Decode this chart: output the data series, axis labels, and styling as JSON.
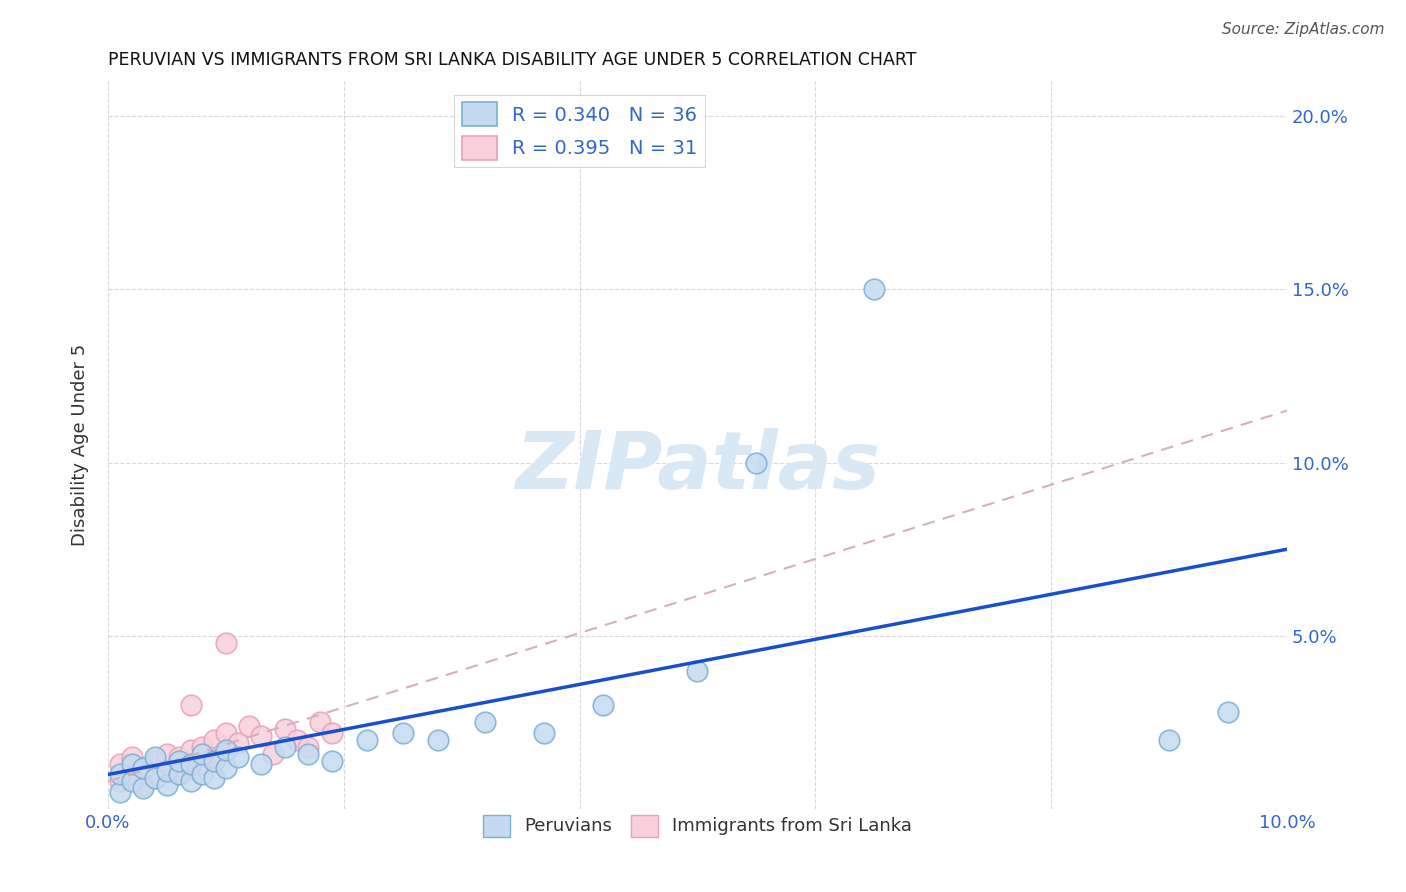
{
  "title": "PERUVIAN VS IMMIGRANTS FROM SRI LANKA DISABILITY AGE UNDER 5 CORRELATION CHART",
  "source": "Source: ZipAtlas.com",
  "ylabel": "Disability Age Under 5",
  "xlim": [
    0.0,
    0.1
  ],
  "ylim": [
    0.0,
    0.21
  ],
  "xticks": [
    0.0,
    0.02,
    0.04,
    0.06,
    0.08,
    0.1
  ],
  "yticks": [
    0.0,
    0.05,
    0.1,
    0.15,
    0.2
  ],
  "xtick_labels_left": [
    "0.0%",
    "",
    "",
    "",
    "",
    ""
  ],
  "xtick_labels_right": [
    "",
    "",
    "",
    "",
    "",
    "10.0%"
  ],
  "ytick_labels_right": [
    "",
    "5.0%",
    "10.0%",
    "15.0%",
    "20.0%"
  ],
  "blue_scatter_x": [
    0.001,
    0.001,
    0.002,
    0.002,
    0.003,
    0.003,
    0.004,
    0.004,
    0.005,
    0.005,
    0.006,
    0.006,
    0.007,
    0.007,
    0.008,
    0.008,
    0.009,
    0.009,
    0.01,
    0.01,
    0.011,
    0.013,
    0.015,
    0.017,
    0.019,
    0.022,
    0.025,
    0.028,
    0.032,
    0.037,
    0.042,
    0.05,
    0.055,
    0.065,
    0.09,
    0.095
  ],
  "blue_scatter_y": [
    0.005,
    0.01,
    0.008,
    0.013,
    0.006,
    0.012,
    0.009,
    0.015,
    0.007,
    0.011,
    0.01,
    0.014,
    0.008,
    0.013,
    0.01,
    0.016,
    0.009,
    0.014,
    0.012,
    0.017,
    0.015,
    0.013,
    0.018,
    0.016,
    0.014,
    0.02,
    0.022,
    0.02,
    0.025,
    0.022,
    0.03,
    0.04,
    0.1,
    0.15,
    0.02,
    0.028
  ],
  "pink_scatter_x": [
    0.001,
    0.001,
    0.002,
    0.002,
    0.003,
    0.003,
    0.004,
    0.004,
    0.005,
    0.005,
    0.006,
    0.006,
    0.007,
    0.007,
    0.008,
    0.008,
    0.009,
    0.009,
    0.01,
    0.01,
    0.011,
    0.012,
    0.013,
    0.014,
    0.015,
    0.016,
    0.017,
    0.018,
    0.019,
    0.01,
    0.007
  ],
  "pink_scatter_y": [
    0.008,
    0.013,
    0.01,
    0.015,
    0.007,
    0.012,
    0.009,
    0.014,
    0.011,
    0.016,
    0.01,
    0.015,
    0.012,
    0.017,
    0.013,
    0.018,
    0.015,
    0.02,
    0.017,
    0.022,
    0.019,
    0.024,
    0.021,
    0.016,
    0.023,
    0.02,
    0.018,
    0.025,
    0.022,
    0.048,
    0.03
  ],
  "blue_line_x": [
    0.0,
    0.1
  ],
  "blue_line_y": [
    0.01,
    0.075
  ],
  "pink_line_x": [
    0.0,
    0.1
  ],
  "pink_line_y": [
    0.008,
    0.115
  ],
  "blue_scatter_color_face": "#c5daf0",
  "blue_scatter_color_edge": "#7bafd4",
  "pink_scatter_color_face": "#f9d0dc",
  "pink_scatter_color_edge": "#e8a0b4",
  "blue_line_color": "#1a4fcc",
  "pink_line_color": "#d4b0bb",
  "watermark": "ZIPatlas",
  "watermark_color": "#d8e8f5",
  "background_color": "#ffffff",
  "grid_color": "#d0d0d0"
}
